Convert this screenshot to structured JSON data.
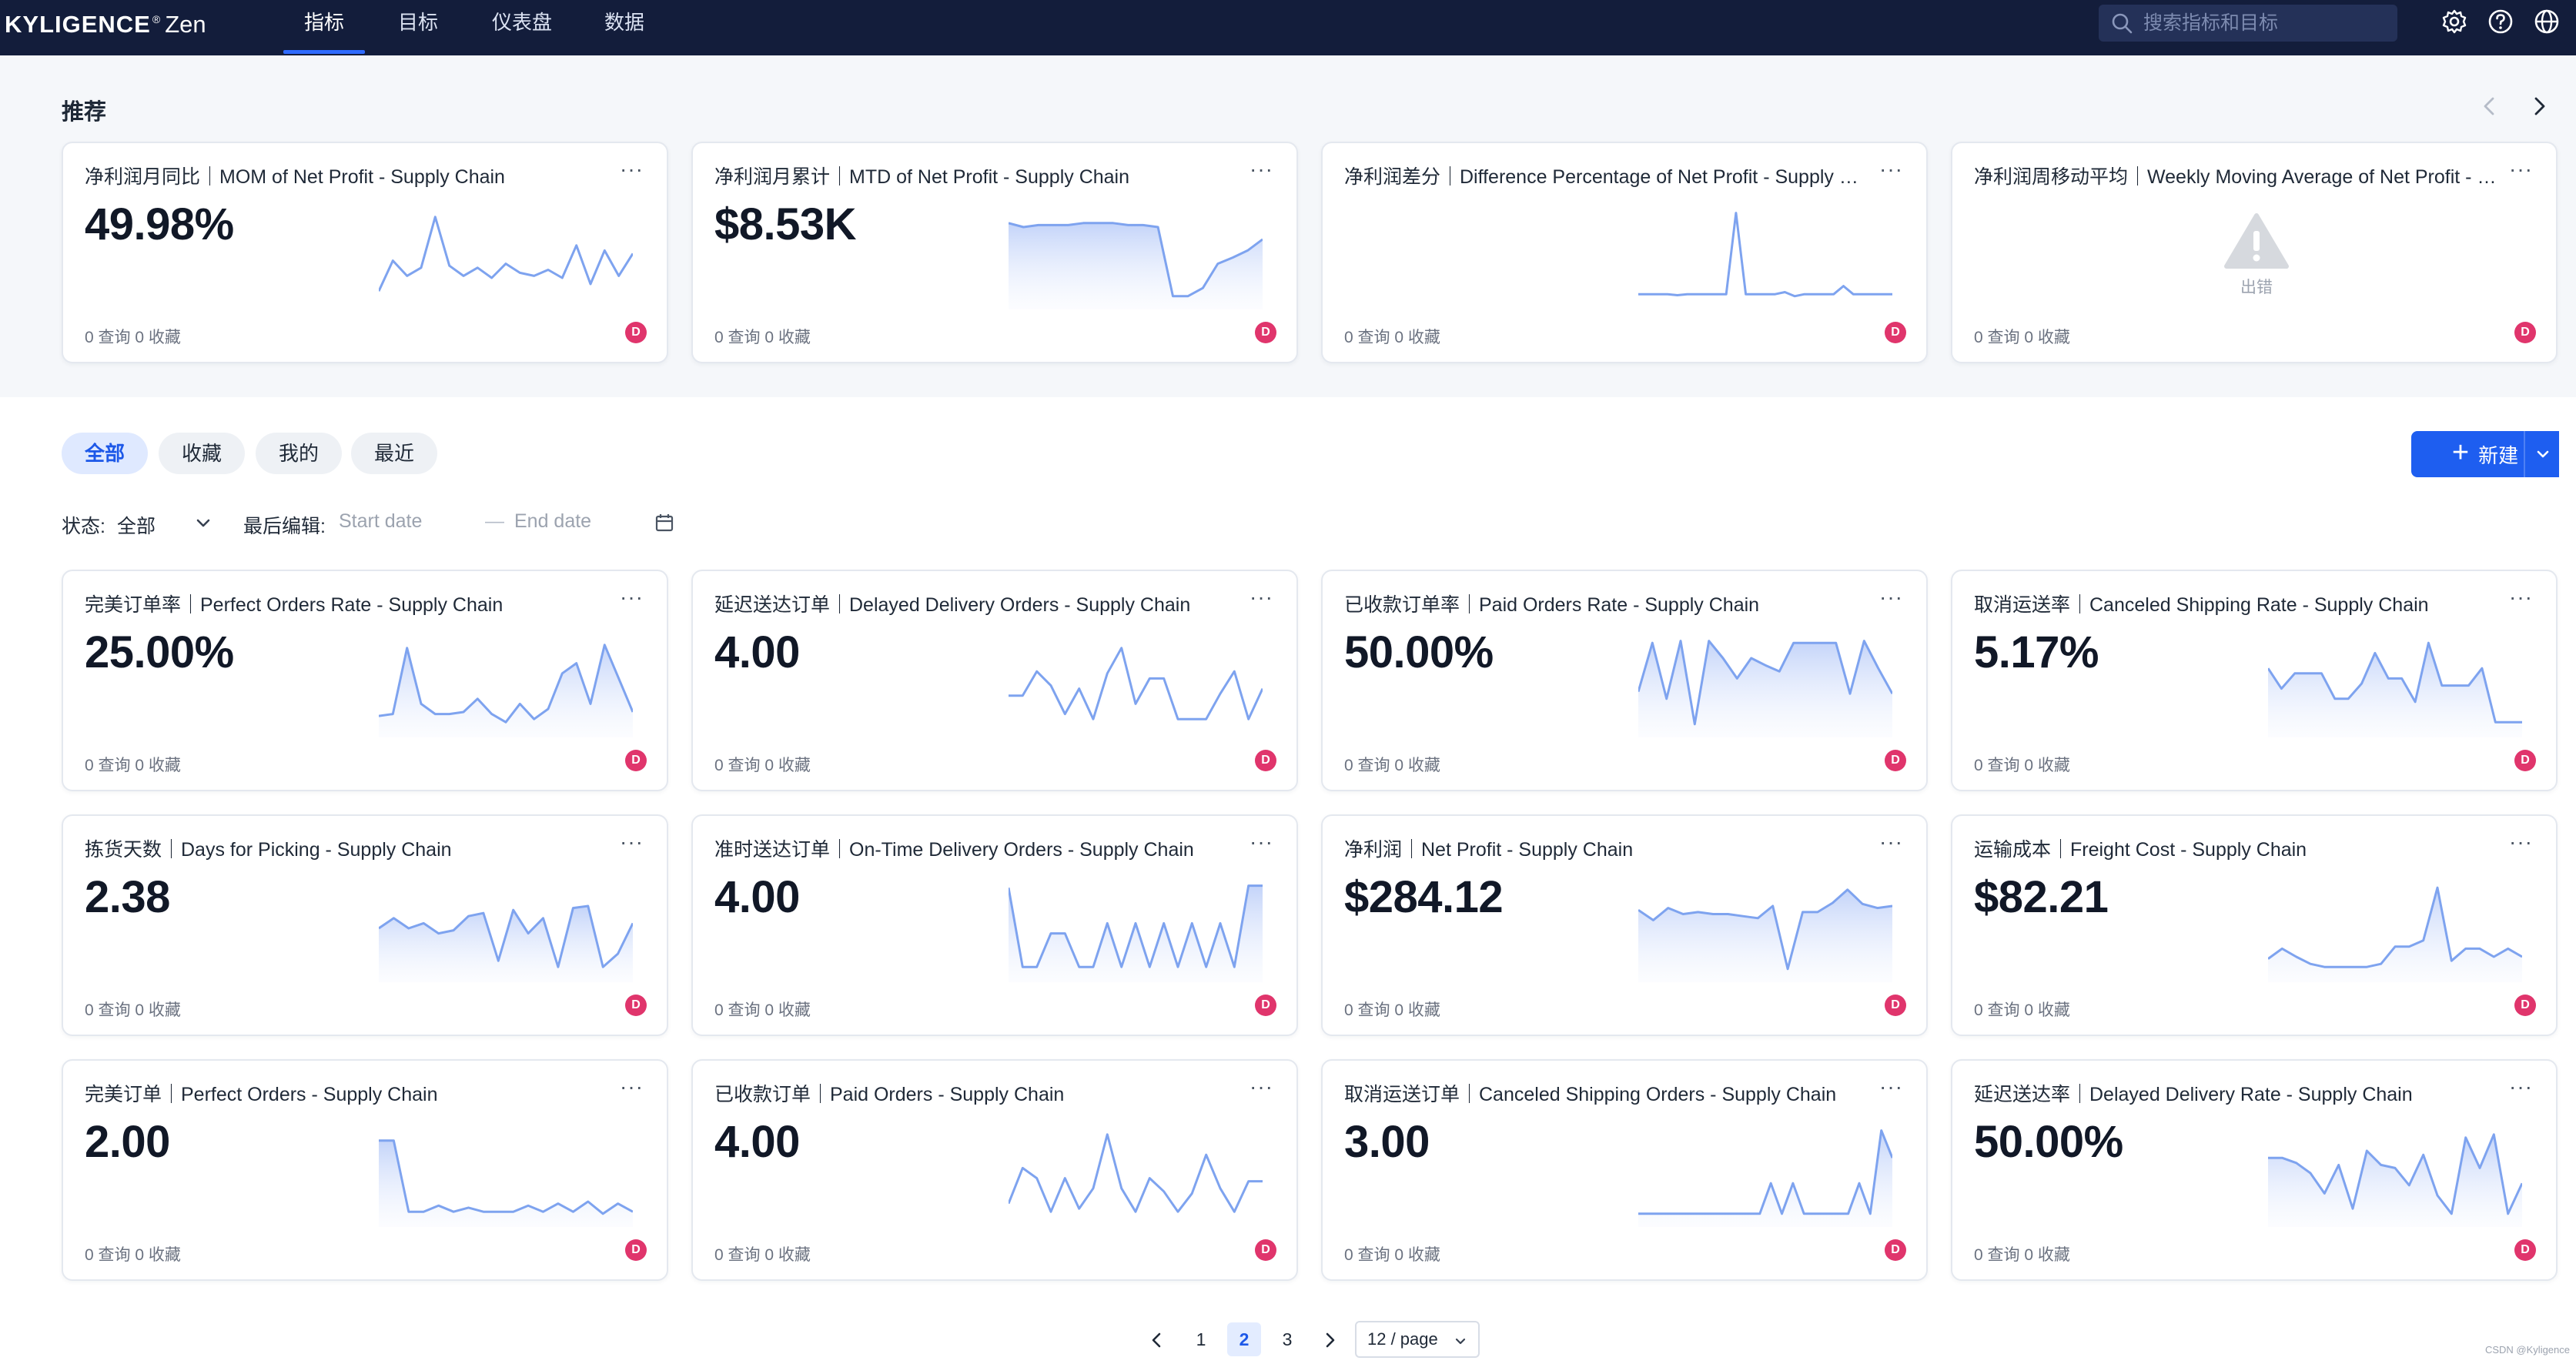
{
  "app": {
    "brand": "KYLIGENCE",
    "reg": "®",
    "product": "Zen"
  },
  "nav": {
    "items": [
      {
        "label": "指标",
        "active": true
      },
      {
        "label": "目标",
        "active": false
      },
      {
        "label": "仪表盘",
        "active": false
      },
      {
        "label": "数据",
        "active": false
      }
    ]
  },
  "search": {
    "placeholder": "搜索指标和目标"
  },
  "icons": {
    "settings": "gear-icon",
    "help": "question-circle-icon",
    "language": "globe-icon"
  },
  "recommended": {
    "title": "推荐",
    "cards": [
      {
        "title": "净利润月同比｜MOM of Net Profit - Supply Chain",
        "value": "49.98%",
        "stats": "0 查询 0 收藏",
        "avatar": "D",
        "spark": [
          0.15,
          0.45,
          0.3,
          0.38,
          0.88,
          0.4,
          0.3,
          0.38,
          0.28,
          0.42,
          0.33,
          0.3,
          0.36,
          0.28,
          0.6,
          0.22,
          0.55,
          0.3,
          0.52
        ]
      },
      {
        "title": "净利润月累计｜MTD of Net Profit - Supply Chain",
        "value": "$8.53K",
        "stats": "0 查询 0 收藏",
        "avatar": "D",
        "area": true,
        "spark": [
          0.82,
          0.78,
          0.8,
          0.8,
          0.8,
          0.82,
          0.82,
          0.82,
          0.8,
          0.8,
          0.78,
          0.1,
          0.1,
          0.18,
          0.42,
          0.48,
          0.55,
          0.66
        ]
      },
      {
        "title": "净利润差分｜Difference Percentage of Net Profit - Supply Chain",
        "value": "",
        "stats": "0 查询 0 收藏",
        "avatar": "D",
        "spark": [
          0.12,
          0.12,
          0.12,
          0.12,
          0.11,
          0.12,
          0.12,
          0.12,
          0.12,
          0.12,
          0.92,
          0.12,
          0.12,
          0.12,
          0.12,
          0.14,
          0.1,
          0.12,
          0.12,
          0.12,
          0.12,
          0.2,
          0.12,
          0.12,
          0.12,
          0.12,
          0.12
        ]
      },
      {
        "title": "净利润周移动平均｜Weekly Moving Average of Net Profit - Supply Chain",
        "value": "",
        "stats": "0 查询 0 收藏",
        "avatar": "D",
        "error": true,
        "error_label": "出错"
      }
    ]
  },
  "filters": {
    "tabs": [
      {
        "label": "全部",
        "active": true
      },
      {
        "label": "收藏",
        "active": false
      },
      {
        "label": "我的",
        "active": false
      },
      {
        "label": "最近",
        "active": false
      }
    ],
    "status_label": "状态:",
    "status_value": "全部",
    "edited_label": "最后编辑:",
    "start_placeholder": "Start date",
    "separator": "—",
    "end_placeholder": "End date",
    "new_button": "新建"
  },
  "metrics": [
    {
      "title": "完美订单率｜Perfect Orders Rate - Supply Chain",
      "value": "25.00%",
      "stats": "0 查询 0 收藏",
      "avatar": "D",
      "area": true,
      "spark": [
        0.18,
        0.2,
        0.85,
        0.3,
        0.2,
        0.2,
        0.22,
        0.35,
        0.2,
        0.12,
        0.3,
        0.15,
        0.25,
        0.6,
        0.7,
        0.3,
        0.88,
        0.55,
        0.22
      ]
    },
    {
      "title": "延迟送达订单｜Delayed Delivery Orders - Supply Chain",
      "value": "4.00",
      "stats": "0 查询 0 收藏",
      "avatar": "D",
      "spark": [
        0.38,
        0.38,
        0.62,
        0.48,
        0.2,
        0.45,
        0.15,
        0.6,
        0.85,
        0.3,
        0.55,
        0.55,
        0.15,
        0.15,
        0.15,
        0.4,
        0.62,
        0.15,
        0.45
      ]
    },
    {
      "title": "已收款订单率｜Paid Orders Rate - Supply Chain",
      "value": "50.00%",
      "stats": "0 查询 0 收藏",
      "avatar": "D",
      "area": true,
      "spark": [
        0.42,
        0.9,
        0.35,
        0.92,
        0.1,
        0.92,
        0.75,
        0.55,
        0.75,
        0.68,
        0.62,
        0.9,
        0.9,
        0.9,
        0.9,
        0.4,
        0.92,
        0.65,
        0.4
      ]
    },
    {
      "title": "取消运送率｜Canceled Shipping Rate - Supply Chain",
      "value": "5.17%",
      "stats": "0 查询 0 收藏",
      "avatar": "D",
      "area": true,
      "spark": [
        0.65,
        0.45,
        0.6,
        0.6,
        0.6,
        0.35,
        0.35,
        0.5,
        0.8,
        0.55,
        0.55,
        0.32,
        0.9,
        0.48,
        0.48,
        0.48,
        0.65,
        0.12,
        0.12,
        0.12
      ]
    },
    {
      "title": "拣货天数｜Days for Picking - Supply Chain",
      "value": "2.38",
      "stats": "0 查询 0 收藏",
      "avatar": "D",
      "area": true,
      "spark": [
        0.5,
        0.6,
        0.5,
        0.55,
        0.45,
        0.48,
        0.62,
        0.65,
        0.18,
        0.68,
        0.45,
        0.6,
        0.12,
        0.7,
        0.72,
        0.12,
        0.25,
        0.55
      ]
    },
    {
      "title": "准时送达订单｜On-Time Delivery Orders - Supply Chain",
      "value": "4.00",
      "stats": "0 查询 0 收藏",
      "avatar": "D",
      "area": true,
      "spark": [
        0.9,
        0.12,
        0.12,
        0.45,
        0.45,
        0.12,
        0.12,
        0.55,
        0.12,
        0.55,
        0.12,
        0.55,
        0.12,
        0.55,
        0.12,
        0.55,
        0.12,
        0.92,
        0.92
      ]
    },
    {
      "title": "净利润｜Net Profit - Supply Chain",
      "value": "$284.12",
      "stats": "0 查询 0 收藏",
      "avatar": "D",
      "area": true,
      "spark": [
        0.68,
        0.58,
        0.7,
        0.64,
        0.66,
        0.64,
        0.64,
        0.62,
        0.6,
        0.72,
        0.1,
        0.66,
        0.66,
        0.75,
        0.88,
        0.74,
        0.7,
        0.72
      ]
    },
    {
      "title": "运输成本｜Freight Cost - Supply Chain",
      "value": "$82.21",
      "stats": "0 查询 0 收藏",
      "avatar": "D",
      "area": true,
      "spark": [
        0.2,
        0.3,
        0.22,
        0.15,
        0.12,
        0.12,
        0.12,
        0.12,
        0.15,
        0.32,
        0.32,
        0.38,
        0.9,
        0.18,
        0.3,
        0.3,
        0.22,
        0.3,
        0.22
      ]
    },
    {
      "title": "完美订单｜Perfect Orders - Supply Chain",
      "value": "2.00",
      "stats": "0 查询 0 收藏",
      "avatar": "D",
      "area": true,
      "spark": [
        0.82,
        0.82,
        0.12,
        0.12,
        0.18,
        0.12,
        0.16,
        0.12,
        0.12,
        0.12,
        0.18,
        0.12,
        0.2,
        0.12,
        0.22,
        0.1,
        0.2,
        0.12
      ]
    },
    {
      "title": "已收款订单｜Paid Orders - Supply Chain",
      "value": "4.00",
      "stats": "0 查询 0 收藏",
      "avatar": "D",
      "spark": [
        0.2,
        0.55,
        0.45,
        0.12,
        0.45,
        0.15,
        0.35,
        0.88,
        0.35,
        0.12,
        0.45,
        0.32,
        0.12,
        0.3,
        0.68,
        0.35,
        0.12,
        0.42,
        0.42
      ]
    },
    {
      "title": "取消运送订单｜Canceled Shipping Orders - Supply Chain",
      "value": "3.00",
      "stats": "0 查询 0 收藏",
      "avatar": "D",
      "area": true,
      "spark": [
        0.1,
        0.1,
        0.1,
        0.1,
        0.1,
        0.1,
        0.1,
        0.1,
        0.1,
        0.1,
        0.1,
        0.1,
        0.4,
        0.1,
        0.4,
        0.1,
        0.1,
        0.1,
        0.1,
        0.1,
        0.4,
        0.1,
        0.92,
        0.65
      ]
    },
    {
      "title": "延迟送达率｜Delayed Delivery Rate - Supply Chain",
      "value": "50.00%",
      "stats": "0 查询 0 收藏",
      "avatar": "D",
      "area": true,
      "spark": [
        0.65,
        0.65,
        0.6,
        0.5,
        0.3,
        0.58,
        0.15,
        0.72,
        0.58,
        0.55,
        0.38,
        0.68,
        0.28,
        0.1,
        0.85,
        0.55,
        0.88,
        0.1,
        0.4
      ]
    }
  ],
  "pagination": {
    "pages": [
      "1",
      "2",
      "3"
    ],
    "current": "2",
    "page_size": "12 / page"
  },
  "footer_note": "CSDN @Kyligence"
}
